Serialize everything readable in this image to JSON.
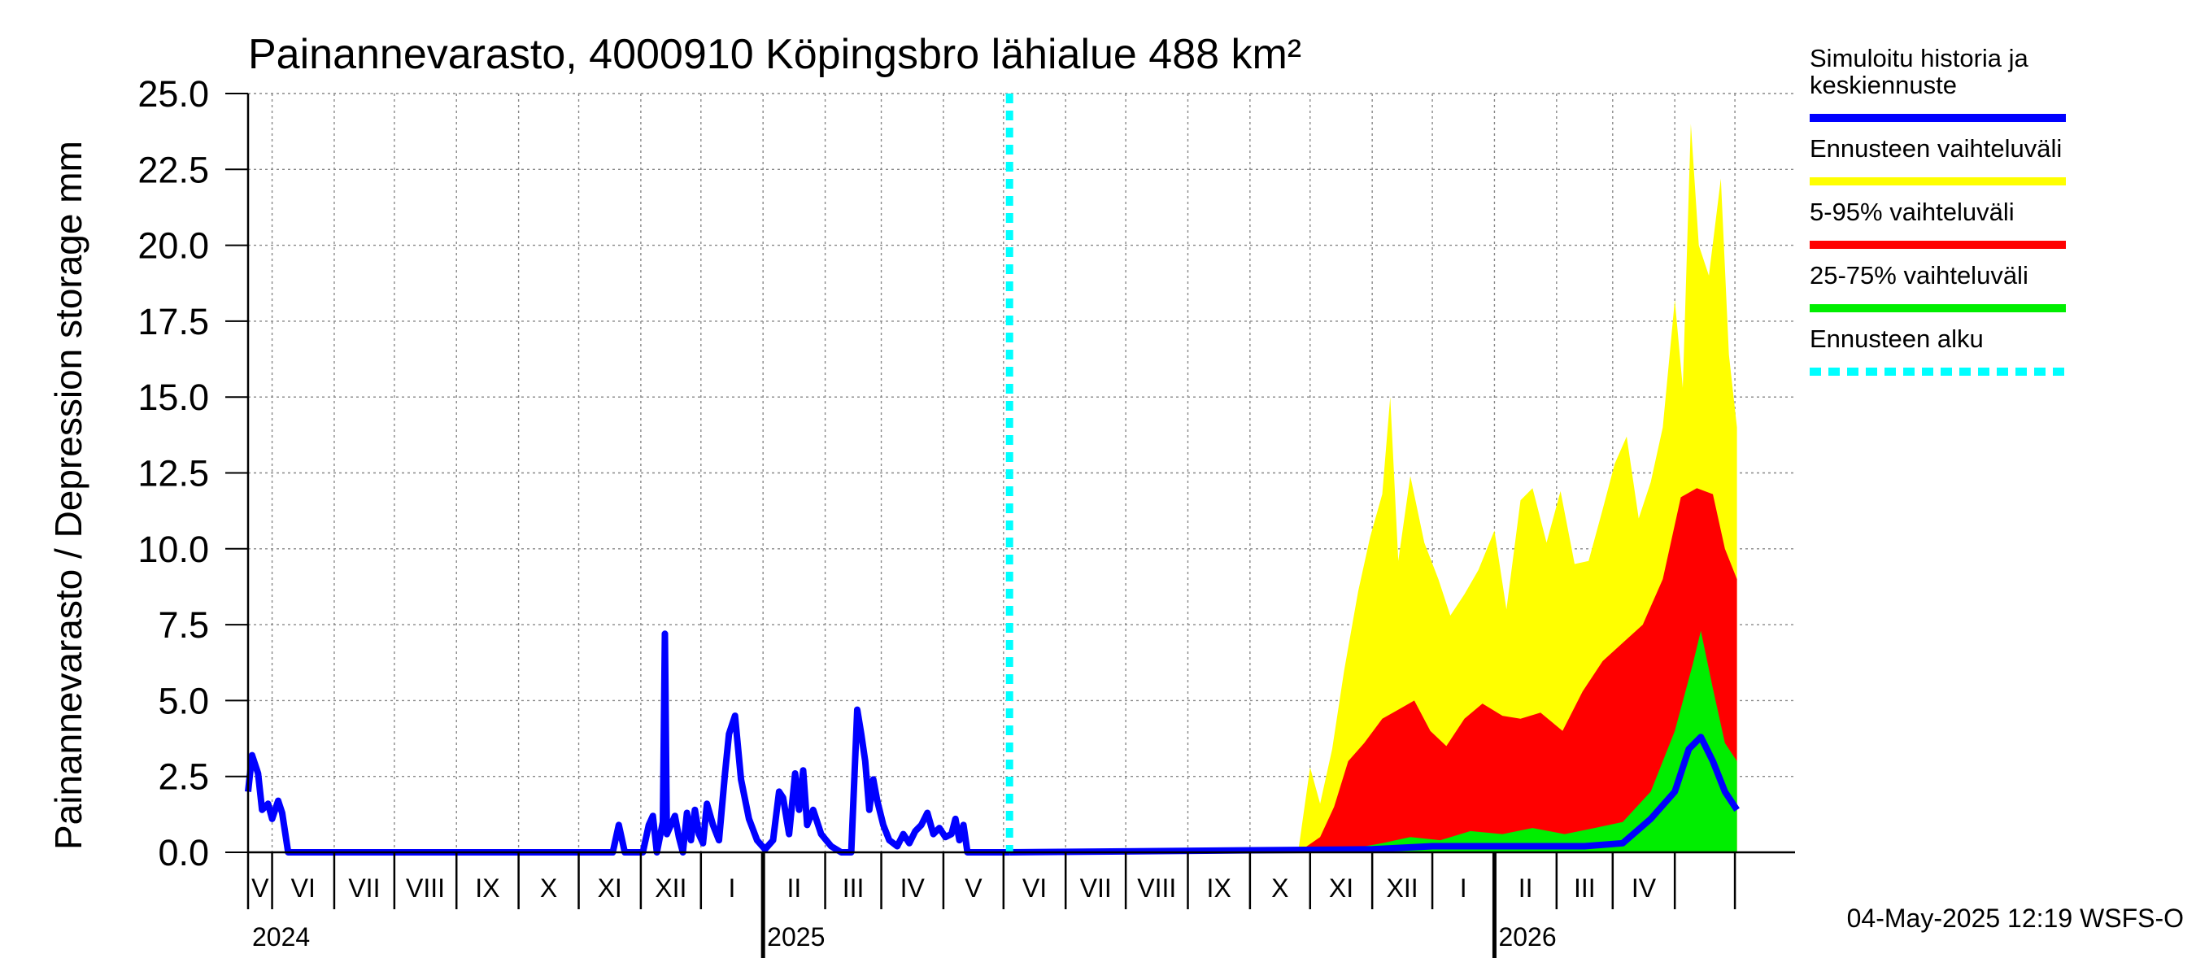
{
  "chart_data": {
    "type": "area",
    "title": "Painannevarasto, 4000910 Köpingsbro lähialue 488 km²",
    "ylabel": "Painannevarasto / Depression storage    mm",
    "ylim": [
      0,
      25
    ],
    "yticks": [
      "0.0",
      "2.5",
      "5.0",
      "7.5",
      "10.0",
      "12.5",
      "15.0",
      "17.5",
      "20.0",
      "22.5",
      "25.0"
    ],
    "grid": true,
    "legend_position": "right",
    "x_start": "2024-04-19",
    "x_end": "2026-05-31",
    "forecast_start": "2025-05-04",
    "months": [
      "V",
      "VI",
      "VII",
      "VIII",
      "IX",
      "X",
      "XI",
      "XII",
      "I",
      "II",
      "III",
      "IV",
      "V",
      "VI",
      "VII",
      "VIII",
      "IX",
      "X",
      "XI",
      "XII",
      "I",
      "II",
      "III",
      "IV"
    ],
    "years": [
      "2024",
      "2025",
      "2026"
    ],
    "legend": [
      {
        "label": "Simuloitu historia ja keskiennuste",
        "color": "#0000ff",
        "dashed": false
      },
      {
        "label": "Ennusteen vaihteluväli",
        "color": "#ffff00",
        "dashed": false
      },
      {
        "label": "5-95% vaihteluväli",
        "color": "#ff0000",
        "dashed": false
      },
      {
        "label": "25-75% vaihteluväli",
        "color": "#00ee00",
        "dashed": false
      },
      {
        "label": "Ennusteen alku",
        "color": "#00ffff",
        "dashed": true
      }
    ],
    "history": [
      [
        "2024-04-19",
        2.0
      ],
      [
        "2024-04-21",
        3.2
      ],
      [
        "2024-04-24",
        2.6
      ],
      [
        "2024-04-26",
        1.4
      ],
      [
        "2024-04-29",
        1.6
      ],
      [
        "2024-05-01",
        1.1
      ],
      [
        "2024-05-04",
        1.7
      ],
      [
        "2024-05-06",
        1.3
      ],
      [
        "2024-05-09",
        0.0
      ],
      [
        "2024-10-18",
        0.0
      ],
      [
        "2024-10-21",
        0.9
      ],
      [
        "2024-10-24",
        0.0
      ],
      [
        "2024-11-02",
        0.0
      ],
      [
        "2024-11-05",
        0.9
      ],
      [
        "2024-11-07",
        1.2
      ],
      [
        "2024-11-09",
        0.0
      ],
      [
        "2024-11-12",
        1.0
      ],
      [
        "2024-11-13",
        7.2
      ],
      [
        "2024-11-14",
        0.6
      ],
      [
        "2024-11-18",
        1.2
      ],
      [
        "2024-11-20",
        0.5
      ],
      [
        "2024-11-22",
        0.0
      ],
      [
        "2024-11-24",
        1.3
      ],
      [
        "2024-11-26",
        0.4
      ],
      [
        "2024-11-28",
        1.4
      ],
      [
        "2024-11-30",
        0.6
      ],
      [
        "2024-12-02",
        0.3
      ],
      [
        "2024-12-04",
        1.6
      ],
      [
        "2024-12-07",
        0.9
      ],
      [
        "2024-12-10",
        0.4
      ],
      [
        "2024-12-13",
        2.6
      ],
      [
        "2024-12-15",
        3.9
      ],
      [
        "2024-12-18",
        4.5
      ],
      [
        "2024-12-21",
        2.4
      ],
      [
        "2024-12-25",
        1.1
      ],
      [
        "2024-12-29",
        0.4
      ],
      [
        "2025-01-02",
        0.1
      ],
      [
        "2025-01-06",
        0.4
      ],
      [
        "2025-01-09",
        2.0
      ],
      [
        "2025-01-11",
        1.8
      ],
      [
        "2025-01-14",
        0.6
      ],
      [
        "2025-01-17",
        2.6
      ],
      [
        "2025-01-19",
        1.4
      ],
      [
        "2025-01-21",
        2.7
      ],
      [
        "2025-01-23",
        0.9
      ],
      [
        "2025-01-26",
        1.4
      ],
      [
        "2025-01-30",
        0.6
      ],
      [
        "2025-02-04",
        0.2
      ],
      [
        "2025-02-09",
        0.0
      ],
      [
        "2025-02-14",
        0.0
      ],
      [
        "2025-02-17",
        4.7
      ],
      [
        "2025-02-19",
        3.9
      ],
      [
        "2025-02-21",
        3.0
      ],
      [
        "2025-02-23",
        1.4
      ],
      [
        "2025-02-25",
        2.4
      ],
      [
        "2025-02-27",
        1.7
      ],
      [
        "2025-03-02",
        0.9
      ],
      [
        "2025-03-05",
        0.4
      ],
      [
        "2025-03-09",
        0.2
      ],
      [
        "2025-03-12",
        0.6
      ],
      [
        "2025-03-15",
        0.3
      ],
      [
        "2025-03-18",
        0.7
      ],
      [
        "2025-03-21",
        0.9
      ],
      [
        "2025-03-24",
        1.3
      ],
      [
        "2025-03-27",
        0.6
      ],
      [
        "2025-03-30",
        0.8
      ],
      [
        "2025-04-02",
        0.5
      ],
      [
        "2025-04-05",
        0.6
      ],
      [
        "2025-04-07",
        1.1
      ],
      [
        "2025-04-09",
        0.4
      ],
      [
        "2025-04-11",
        0.9
      ],
      [
        "2025-04-13",
        0.0
      ],
      [
        "2025-05-04",
        0.0
      ]
    ],
    "forecast_band_start": "2025-09-25",
    "forecast_yellow_max": [
      [
        "2025-09-25",
        0.0
      ],
      [
        "2025-10-01",
        2.8
      ],
      [
        "2025-10-06",
        1.6
      ],
      [
        "2025-10-12",
        3.4
      ],
      [
        "2025-10-18",
        6.0
      ],
      [
        "2025-10-25",
        8.6
      ],
      [
        "2025-10-31",
        10.4
      ],
      [
        "2025-11-06",
        11.8
      ],
      [
        "2025-11-10",
        15.0
      ],
      [
        "2025-11-14",
        9.6
      ],
      [
        "2025-11-20",
        12.4
      ],
      [
        "2025-11-27",
        10.2
      ],
      [
        "2025-12-04",
        9.0
      ],
      [
        "2025-12-10",
        7.8
      ],
      [
        "2025-12-17",
        8.5
      ],
      [
        "2025-12-24",
        9.3
      ],
      [
        "2026-01-01",
        10.6
      ],
      [
        "2026-01-07",
        8.0
      ],
      [
        "2026-01-14",
        11.6
      ],
      [
        "2026-01-20",
        12.0
      ],
      [
        "2026-01-27",
        10.2
      ],
      [
        "2026-02-03",
        11.9
      ],
      [
        "2026-02-10",
        9.5
      ],
      [
        "2026-02-17",
        9.6
      ],
      [
        "2026-02-24",
        11.3
      ],
      [
        "2026-03-02",
        12.8
      ],
      [
        "2026-03-08",
        13.7
      ],
      [
        "2026-03-14",
        11.0
      ],
      [
        "2026-03-20",
        12.2
      ],
      [
        "2026-03-26",
        14.0
      ],
      [
        "2026-04-01",
        18.2
      ],
      [
        "2026-04-05",
        15.3
      ],
      [
        "2026-04-09",
        24.0
      ],
      [
        "2026-04-13",
        20.0
      ],
      [
        "2026-04-18",
        19.0
      ],
      [
        "2026-04-24",
        22.2
      ],
      [
        "2026-04-28",
        16.4
      ],
      [
        "2026-05-02",
        14.0
      ]
    ],
    "forecast_red_max": [
      [
        "2025-09-25",
        0.0
      ],
      [
        "2025-10-06",
        0.5
      ],
      [
        "2025-10-13",
        1.5
      ],
      [
        "2025-10-20",
        3.0
      ],
      [
        "2025-10-28",
        3.6
      ],
      [
        "2025-11-06",
        4.4
      ],
      [
        "2025-11-14",
        4.7
      ],
      [
        "2025-11-22",
        5.0
      ],
      [
        "2025-11-30",
        4.0
      ],
      [
        "2025-12-08",
        3.5
      ],
      [
        "2025-12-17",
        4.4
      ],
      [
        "2025-12-26",
        4.9
      ],
      [
        "2026-01-05",
        4.5
      ],
      [
        "2026-01-14",
        4.4
      ],
      [
        "2026-01-24",
        4.6
      ],
      [
        "2026-02-04",
        4.0
      ],
      [
        "2026-02-14",
        5.3
      ],
      [
        "2026-02-24",
        6.3
      ],
      [
        "2026-03-06",
        6.9
      ],
      [
        "2026-03-16",
        7.5
      ],
      [
        "2026-03-26",
        9.0
      ],
      [
        "2026-04-04",
        11.7
      ],
      [
        "2026-04-12",
        12.0
      ],
      [
        "2026-04-20",
        11.8
      ],
      [
        "2026-04-26",
        10.0
      ],
      [
        "2026-05-02",
        9.0
      ]
    ],
    "forecast_green_max": [
      [
        "2025-09-25",
        0.0
      ],
      [
        "2025-10-20",
        0.1
      ],
      [
        "2025-11-06",
        0.3
      ],
      [
        "2025-11-20",
        0.5
      ],
      [
        "2025-12-05",
        0.4
      ],
      [
        "2025-12-20",
        0.7
      ],
      [
        "2026-01-05",
        0.6
      ],
      [
        "2026-01-20",
        0.8
      ],
      [
        "2026-02-05",
        0.6
      ],
      [
        "2026-02-20",
        0.8
      ],
      [
        "2026-03-06",
        1.0
      ],
      [
        "2026-03-20",
        2.0
      ],
      [
        "2026-04-01",
        4.0
      ],
      [
        "2026-04-10",
        6.2
      ],
      [
        "2026-04-14",
        7.3
      ],
      [
        "2026-04-20",
        5.4
      ],
      [
        "2026-04-26",
        3.6
      ],
      [
        "2026-05-02",
        3.0
      ]
    ],
    "forecast_median": [
      [
        "2025-05-04",
        0.0
      ],
      [
        "2025-11-01",
        0.1
      ],
      [
        "2025-12-01",
        0.2
      ],
      [
        "2026-01-15",
        0.2
      ],
      [
        "2026-02-15",
        0.2
      ],
      [
        "2026-03-06",
        0.3
      ],
      [
        "2026-03-20",
        1.1
      ],
      [
        "2026-04-01",
        2.0
      ],
      [
        "2026-04-08",
        3.4
      ],
      [
        "2026-04-14",
        3.8
      ],
      [
        "2026-04-20",
        3.0
      ],
      [
        "2026-04-26",
        2.0
      ],
      [
        "2026-05-02",
        1.4
      ]
    ],
    "footer": "04-May-2025 12:19 WSFS-O"
  }
}
